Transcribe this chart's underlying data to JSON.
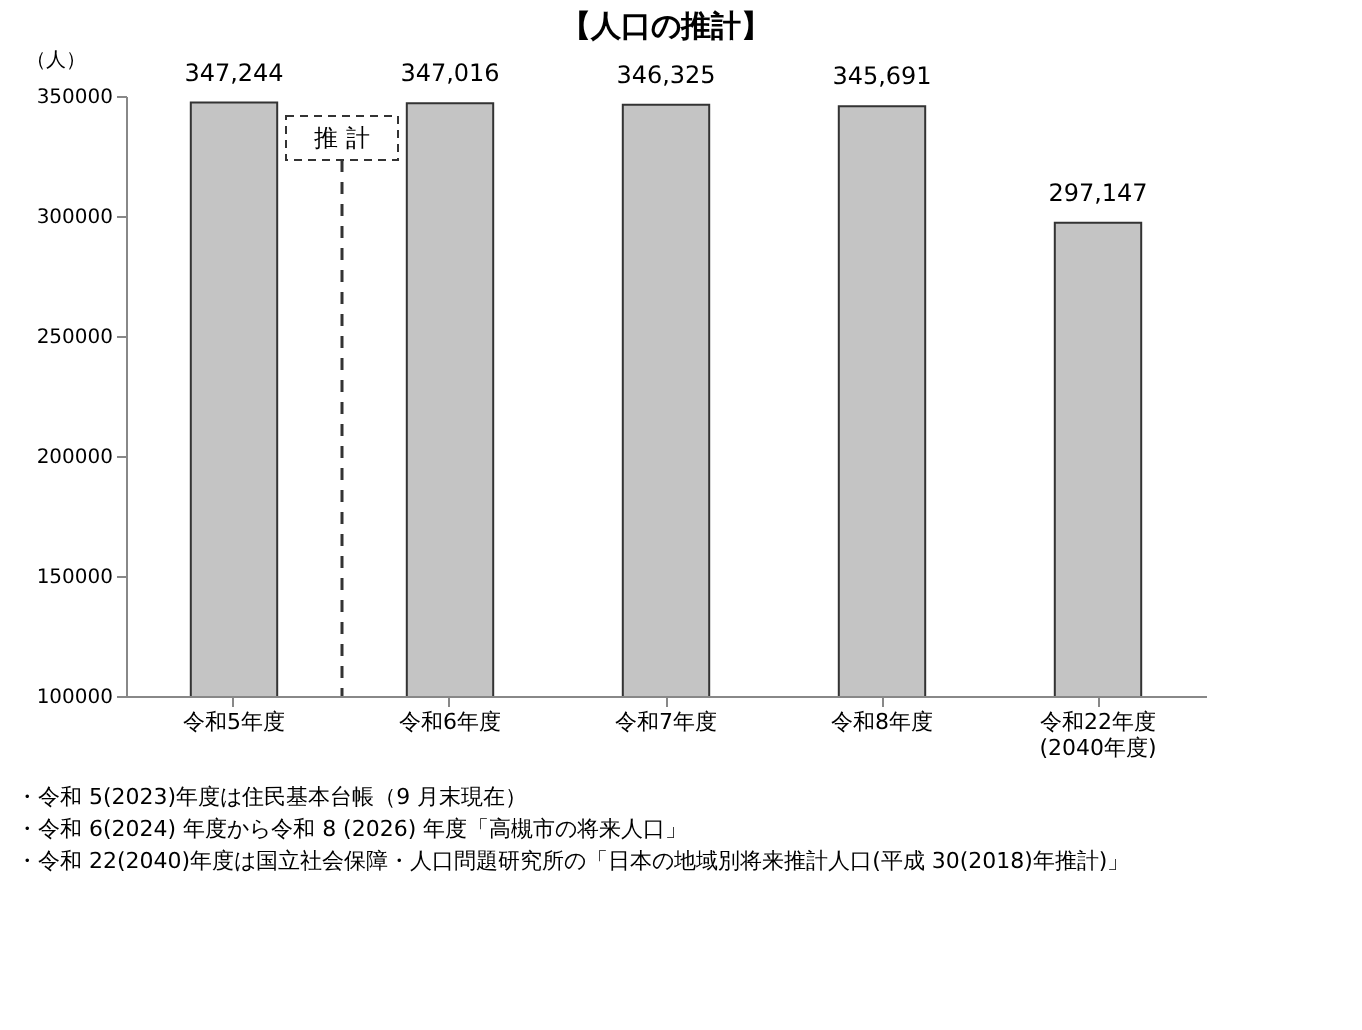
{
  "chart_data": {
    "type": "bar",
    "title": "【人口の推計】",
    "ylabel": "（人）",
    "categories": [
      "令和5年度",
      "令和6年度",
      "令和7年度",
      "令和8年度",
      "令和22年度\n(2040年度)"
    ],
    "values": [
      347244,
      347016,
      346325,
      345691,
      297147
    ],
    "value_labels": [
      "347,244",
      "347,016",
      "346,325",
      "345,691",
      "297,147"
    ],
    "color": "#c4c4c4",
    "ylim": [
      100000,
      350000
    ],
    "yticks": [
      100000,
      150000,
      200000,
      250000,
      300000,
      350000
    ],
    "grid": false,
    "annotations": [
      "推 計",
      "・令和 5(2023)年度は住民基本台帳（9 月末現在）",
      "・令和 6(2024) 年度から令和 8 (2026) 年度「高槻市の将来人口」",
      "・令和 22(2040)年度は国立社会保障・人口問題研究所の「日本の地域別将来推計人口(平成 30(2018)年推計)」"
    ]
  }
}
